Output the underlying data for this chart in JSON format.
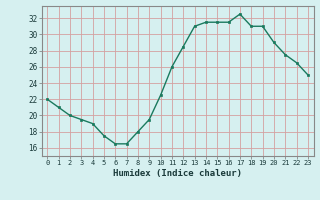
{
  "x": [
    0,
    1,
    2,
    3,
    4,
    5,
    6,
    7,
    8,
    9,
    10,
    11,
    12,
    13,
    14,
    15,
    16,
    17,
    18,
    19,
    20,
    21,
    22,
    23
  ],
  "y": [
    22,
    21,
    20,
    19.5,
    19,
    17.5,
    16.5,
    16.5,
    18,
    19.5,
    22.5,
    26,
    28.5,
    31,
    31.5,
    31.5,
    31.5,
    32.5,
    31,
    31,
    29,
    27.5,
    26.5,
    25
  ],
  "xlabel": "Humidex (Indice chaleur)",
  "ylim": [
    15,
    33.5
  ],
  "xlim": [
    -0.5,
    23.5
  ],
  "yticks": [
    16,
    18,
    20,
    22,
    24,
    26,
    28,
    30,
    32
  ],
  "xticks": [
    0,
    1,
    2,
    3,
    4,
    5,
    6,
    7,
    8,
    9,
    10,
    11,
    12,
    13,
    14,
    15,
    16,
    17,
    18,
    19,
    20,
    21,
    22,
    23
  ],
  "line_color": "#1a7a5e",
  "marker_color": "#1a7a5e",
  "bg_color": "#d6f0f0",
  "grid_color": "#d4a0a0",
  "spine_color": "#888888"
}
